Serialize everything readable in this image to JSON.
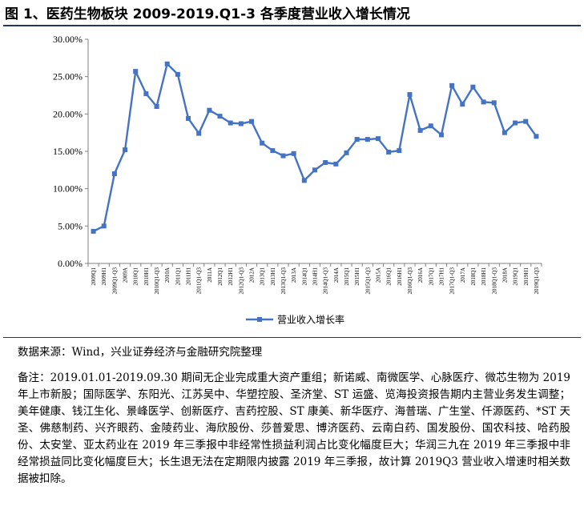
{
  "figure": {
    "title": "图 1、医药生物板块 2009-2019.Q1-3 各季度营业收入增长情况",
    "source": "数据来源：Wind，兴业证券经济与金融研究院整理",
    "note": "备注：2019.01.01-2019.09.30 期间无企业完成重大资产重组；新诺威、南微医学、心脉医疗、微芯生物为 2019 年上市新股；国际医学、东阳光、江苏吴中、华塑控股、圣济堂、ST 运盛、览海投资报告期内主营业务发生调整；美年健康、钱江生化、景峰医学、创新医疗、吉药控股、ST 康美、新华医疗、海普瑞、广生堂、仟源医药、*ST 天圣、佛慈制药、兴齐眼药、金陵药业、海欣股份、莎普爱思、博济医药、云南白药、国发股份、国农科技、哈药股份、太安堂、亚太药业在 2019 年三季报中非经常性损益利润占比变化幅度巨大；华润三九在 2019 年三季报中非经常损益同比变化幅度巨大；长生退无法在定期限内披露 2019 年三季报，故计算 2019Q3 营业收入增速时相关数据被扣除。"
  },
  "chart_data": {
    "type": "line",
    "title": "",
    "xlabel": "",
    "ylabel": "",
    "ylim": [
      0,
      30
    ],
    "yticks": [
      "0.00%",
      "5.00%",
      "10.00%",
      "15.00%",
      "20.00%",
      "25.00%",
      "30.00%"
    ],
    "grid": false,
    "legend_position": "bottom",
    "series_color": "#4472c4",
    "categories": [
      "2009Q1",
      "2009H1",
      "2009Q1-Q3",
      "2009A",
      "2010Q1",
      "2010H1",
      "2010Q1-Q3",
      "2010A",
      "2011Q1",
      "2011H1",
      "2011Q1-Q3",
      "2011A",
      "2012Q1",
      "2012H1",
      "2012Q1-Q3",
      "2012A",
      "2013Q1",
      "2013H1",
      "2013Q1-Q3",
      "2013A",
      "2014Q1",
      "2014H1",
      "2014Q1-Q3",
      "2014A",
      "2015Q1",
      "2015H1",
      "2015Q1-Q3",
      "2015A",
      "2016Q1",
      "2016H1",
      "2016Q1-Q3",
      "2016A",
      "2017Q1",
      "2017H1",
      "2017Q1-Q3",
      "2017A",
      "2018Q1",
      "2018H1",
      "2018Q1-Q3",
      "2018A",
      "2019Q1",
      "2019H1",
      "2019Q1-Q3"
    ],
    "series": [
      {
        "name": "营业收入增长率",
        "values": [
          4.3,
          5.0,
          12.0,
          15.2,
          25.7,
          22.7,
          21.0,
          26.7,
          25.3,
          19.4,
          17.4,
          20.5,
          19.7,
          18.8,
          18.7,
          19.0,
          16.1,
          15.1,
          14.4,
          14.7,
          11.1,
          12.5,
          13.5,
          13.3,
          14.8,
          16.6,
          16.6,
          16.7,
          14.9,
          15.1,
          22.6,
          17.8,
          18.4,
          17.2,
          23.8,
          21.3,
          23.6,
          21.6,
          21.5,
          17.5,
          18.8,
          19.0,
          17.0
        ]
      }
    ]
  }
}
